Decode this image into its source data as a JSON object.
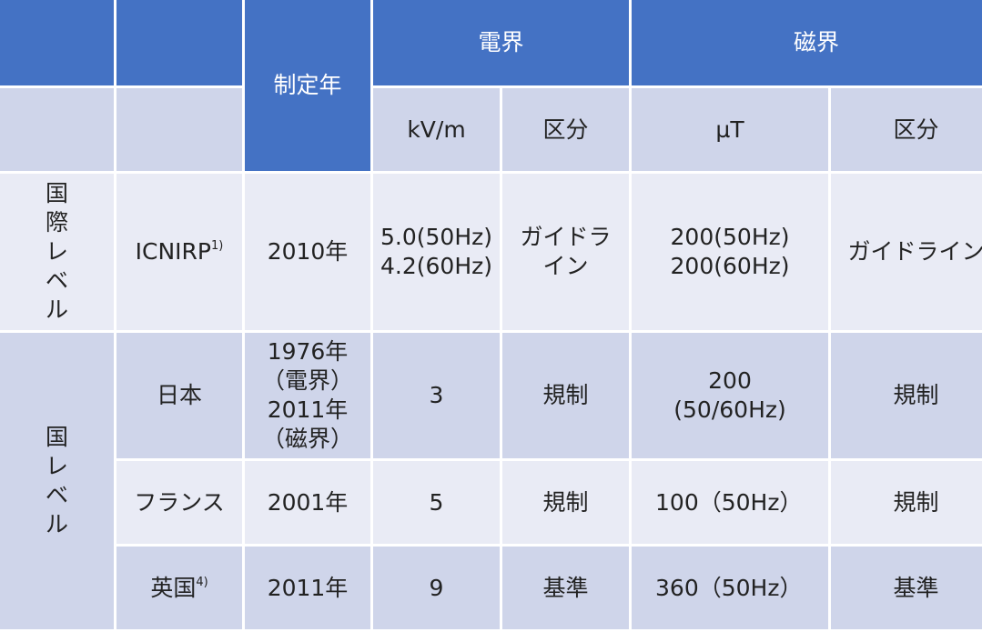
{
  "header": {
    "year_label": "制定年",
    "electric_label": "電界",
    "magnetic_label": "磁界",
    "kvm_label": "kV/m",
    "category_label_e": "区分",
    "ut_label": "µT",
    "category_label_m": "区分"
  },
  "groups": {
    "international": [
      "国",
      "際",
      "レ",
      "ベ",
      "ル"
    ],
    "national": [
      "国",
      "レ",
      "ベ",
      "ル"
    ]
  },
  "rows": {
    "icnirp": {
      "name": "ICNIRP",
      "ref": "1)",
      "year": "2010年",
      "e_value_1": "5.0(50Hz)",
      "e_value_2": "4.2(60Hz)",
      "e_cat_1": "ガイドラ",
      "e_cat_2": "イン",
      "m_value_1": "200(50Hz)",
      "m_value_2": "200(60Hz)",
      "m_cat": "ガイドライン"
    },
    "japan": {
      "name": "日本",
      "year_1": "1976年",
      "year_2": "（電界）",
      "year_3": "2011年",
      "year_4": "（磁界）",
      "e_value": "3",
      "e_cat": "規制",
      "m_value_1": "200",
      "m_value_2": "(50/60Hz)",
      "m_cat": "規制"
    },
    "france": {
      "name": "フランス",
      "year": "2001年",
      "e_value": "5",
      "e_cat": "規制",
      "m_value": "100（50Hz）",
      "m_cat": "規制"
    },
    "uk": {
      "name": "英国",
      "ref": "4)",
      "year": "2011年",
      "e_value": "9",
      "e_cat": "基準",
      "m_value": "360（50Hz）",
      "m_cat": "基準"
    }
  }
}
